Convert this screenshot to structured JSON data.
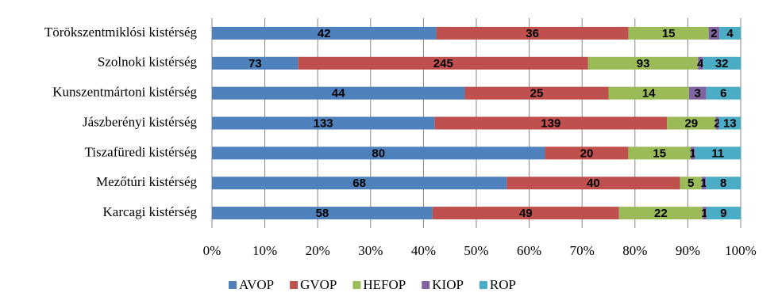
{
  "chart_data": {
    "type": "bar",
    "orientation": "horizontal",
    "stacking": "percent",
    "categories": [
      "Törökszentmiklósi kistérség",
      "Szolnoki kistérség",
      "Kunszentmártoni kistérség",
      "Jászberényi kistérség",
      "Tiszafüredi kistérség",
      "Mezőtúri kistérség",
      "Karcagi kistérség"
    ],
    "series": [
      {
        "name": "AVOP",
        "color": "#4f81bd",
        "values": [
          42,
          73,
          44,
          133,
          80,
          68,
          58
        ]
      },
      {
        "name": "GVOP",
        "color": "#c0504d",
        "values": [
          36,
          245,
          25,
          139,
          20,
          40,
          49
        ]
      },
      {
        "name": "HEFOP",
        "color": "#9bbb59",
        "values": [
          15,
          93,
          14,
          29,
          15,
          5,
          22
        ]
      },
      {
        "name": "KIOP",
        "color": "#8064a2",
        "values": [
          2,
          4,
          3,
          2,
          1,
          1,
          1
        ]
      },
      {
        "name": "ROP",
        "color": "#4bacc6",
        "values": [
          4,
          32,
          6,
          13,
          11,
          8,
          9
        ]
      }
    ],
    "xlim": [
      0,
      100
    ],
    "xticks": [
      {
        "value": 0,
        "label": "0%"
      },
      {
        "value": 10,
        "label": "10%"
      },
      {
        "value": 20,
        "label": "20%"
      },
      {
        "value": 30,
        "label": "30%"
      },
      {
        "value": 40,
        "label": "40%"
      },
      {
        "value": 50,
        "label": "50%"
      },
      {
        "value": 60,
        "label": "60%"
      },
      {
        "value": 70,
        "label": "70%"
      },
      {
        "value": 80,
        "label": "80%"
      },
      {
        "value": 90,
        "label": "90%"
      },
      {
        "value": 100,
        "label": "100%"
      }
    ],
    "grid": true,
    "legend": "bottom"
  }
}
